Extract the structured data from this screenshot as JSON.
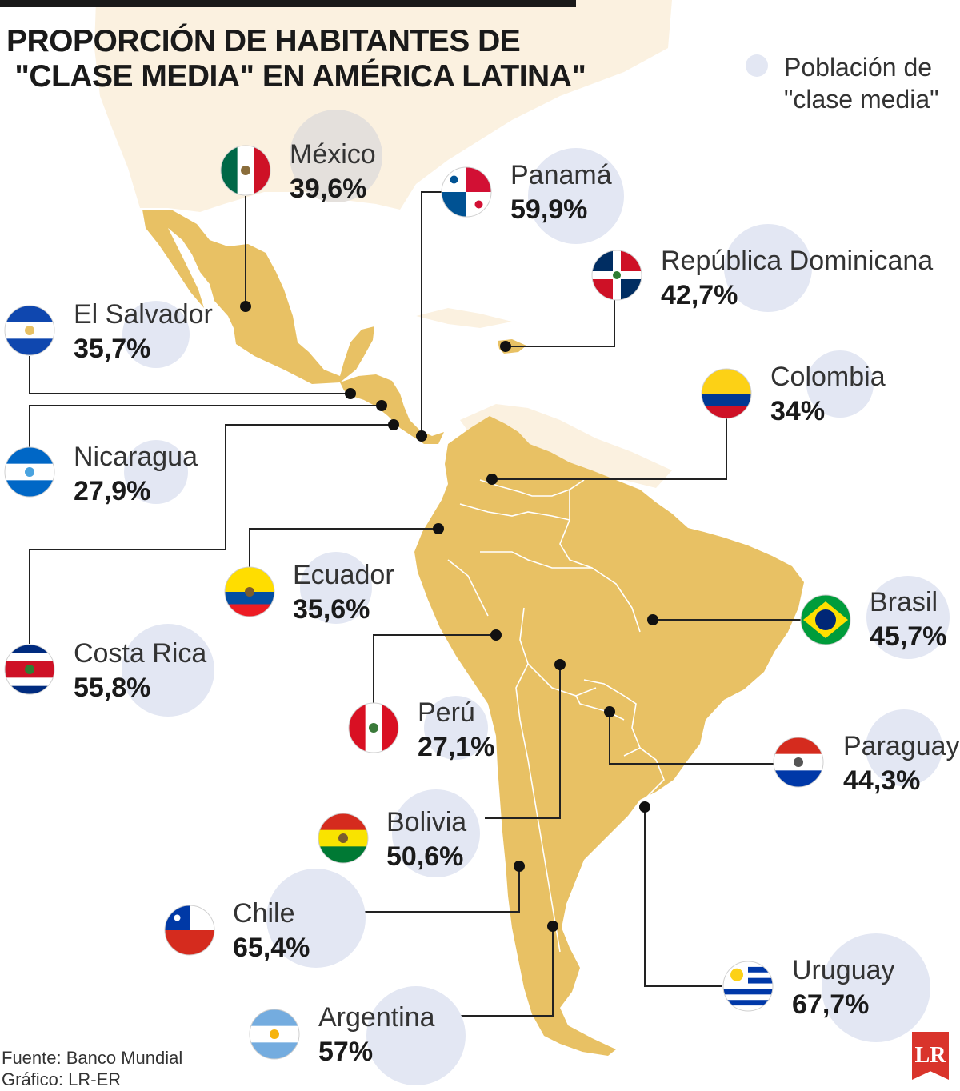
{
  "title_lines": [
    "PROPORCIÓN DE HABITANTES DE",
    " \"CLASE MEDIA\" EN AMÉRICA LATINA\""
  ],
  "legend": {
    "label_lines": [
      "Población de",
      "\"clase media\""
    ],
    "color": "#e3e7f3"
  },
  "source": "Fuente: Banco Mundial",
  "credit": "Gráfico: LR-ER",
  "logo": "LR",
  "colors": {
    "land_highlight": "#e8c164",
    "land_background": "#fbf1e0",
    "bubble": "#e3e7f3",
    "text": "#1a1a1a"
  },
  "countries": [
    {
      "key": "mexico",
      "name": "México",
      "value": "39,6%",
      "share": 0.396,
      "flag": "mexico-flag-icon"
    },
    {
      "key": "panama",
      "name": "Panamá",
      "value": "59,9%",
      "share": 0.599,
      "flag": "panama-flag-icon"
    },
    {
      "key": "dominicana",
      "name": "República Dominicana",
      "value": "42,7%",
      "share": 0.427,
      "flag": "dominican-republic-flag-icon"
    },
    {
      "key": "el-salvador",
      "name": "El Salvador",
      "value": "35,7%",
      "share": 0.357,
      "flag": "el-salvador-flag-icon"
    },
    {
      "key": "colombia",
      "name": "Colombia",
      "value": "34%",
      "share": 0.34,
      "flag": "colombia-flag-icon"
    },
    {
      "key": "nicaragua",
      "name": "Nicaragua",
      "value": "27,9%",
      "share": 0.279,
      "flag": "nicaragua-flag-icon"
    },
    {
      "key": "ecuador",
      "name": "Ecuador",
      "value": "35,6%",
      "share": 0.356,
      "flag": "ecuador-flag-icon"
    },
    {
      "key": "brasil",
      "name": "Brasil",
      "value": "45,7%",
      "share": 0.457,
      "flag": "brazil-flag-icon"
    },
    {
      "key": "costa-rica",
      "name": "Costa Rica",
      "value": "55,8%",
      "share": 0.558,
      "flag": "costa-rica-flag-icon"
    },
    {
      "key": "peru",
      "name": "Perú",
      "value": "27,1%",
      "share": 0.271,
      "flag": "peru-flag-icon"
    },
    {
      "key": "paraguay",
      "name": "Paraguay",
      "value": "44,3%",
      "share": 0.443,
      "flag": "paraguay-flag-icon"
    },
    {
      "key": "bolivia",
      "name": "Bolivia",
      "value": "50,6%",
      "share": 0.506,
      "flag": "bolivia-flag-icon"
    },
    {
      "key": "chile",
      "name": "Chile",
      "value": "65,4%",
      "share": 0.654,
      "flag": "chile-flag-icon"
    },
    {
      "key": "uruguay",
      "name": "Uruguay",
      "value": "67,7%",
      "share": 0.677,
      "flag": "uruguay-flag-icon"
    },
    {
      "key": "argentina",
      "name": "Argentina",
      "value": "57%",
      "share": 0.57,
      "flag": "argentina-flag-icon"
    }
  ]
}
